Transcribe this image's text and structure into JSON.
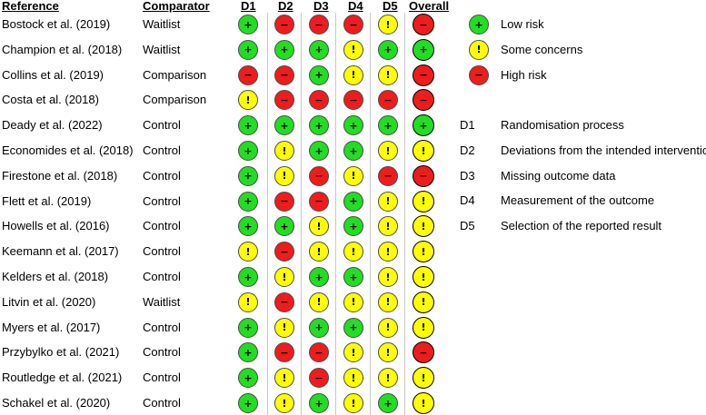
{
  "headers": {
    "reference": "Reference",
    "comparator": "Comparator",
    "domains": [
      "D1",
      "D2",
      "D3",
      "D4",
      "D5"
    ],
    "overall": "Overall"
  },
  "judgement_styles": {
    "low": {
      "color": "#22dd22",
      "symbol": "+"
    },
    "some": {
      "color": "#ffff00",
      "symbol": "!"
    },
    "high": {
      "color": "#ee1c1c",
      "symbol": "−"
    }
  },
  "studies": [
    {
      "reference": "Bostock et al. (2019)",
      "comparator": "Waitlist",
      "d": [
        "low",
        "high",
        "high",
        "high",
        "some"
      ],
      "overall": "high"
    },
    {
      "reference": "Champion et al. (2018)",
      "comparator": "Waitlist",
      "d": [
        "low",
        "low",
        "low",
        "some",
        "low"
      ],
      "overall": "low"
    },
    {
      "reference": "Collins et al. (2019)",
      "comparator": "Comparison",
      "d": [
        "high",
        "high",
        "low",
        "some",
        "some"
      ],
      "overall": "high"
    },
    {
      "reference": "Costa et al. (2018)",
      "comparator": "Comparison",
      "d": [
        "some",
        "high",
        "high",
        "high",
        "high"
      ],
      "overall": "high"
    },
    {
      "reference": "Deady et al. (2022)",
      "comparator": "Control",
      "d": [
        "low",
        "low",
        "low",
        "low",
        "low"
      ],
      "overall": "low"
    },
    {
      "reference": "Economides et al. (2018)",
      "comparator": "Control",
      "d": [
        "low",
        "some",
        "low",
        "low",
        "some"
      ],
      "overall": "some"
    },
    {
      "reference": "Firestone et al. (2018)",
      "comparator": "Control",
      "d": [
        "low",
        "some",
        "high",
        "some",
        "high"
      ],
      "overall": "high"
    },
    {
      "reference": "Flett et al. (2019)",
      "comparator": "Control",
      "d": [
        "low",
        "high",
        "high",
        "low",
        "some"
      ],
      "overall": "some"
    },
    {
      "reference": "Howells et al. (2016)",
      "comparator": "Control",
      "d": [
        "low",
        "low",
        "some",
        "low",
        "some"
      ],
      "overall": "some"
    },
    {
      "reference": "Keemann et al. (2017)",
      "comparator": "Control",
      "d": [
        "some",
        "high",
        "some",
        "some",
        "some"
      ],
      "overall": "some"
    },
    {
      "reference": "Kelders et al. (2018)",
      "comparator": "Control",
      "d": [
        "low",
        "some",
        "low",
        "low",
        "some"
      ],
      "overall": "some"
    },
    {
      "reference": "Litvin et al. (2020)",
      "comparator": "Waitlist",
      "d": [
        "some",
        "high",
        "some",
        "some",
        "some"
      ],
      "overall": "some"
    },
    {
      "reference": "Myers et al. (2017)",
      "comparator": "Control",
      "d": [
        "low",
        "some",
        "low",
        "low",
        "some"
      ],
      "overall": "some"
    },
    {
      "reference": "Przybylko et al. (2021)",
      "comparator": "Control",
      "d": [
        "low",
        "high",
        "high",
        "some",
        "some"
      ],
      "overall": "high"
    },
    {
      "reference": "Routledge et al. (2021)",
      "comparator": "Control",
      "d": [
        "low",
        "some",
        "high",
        "some",
        "some"
      ],
      "overall": "some"
    },
    {
      "reference": "Schakel et al. (2020)",
      "comparator": "Control",
      "d": [
        "low",
        "some",
        "low",
        "some",
        "low"
      ],
      "overall": "some"
    }
  ],
  "legend": {
    "judgements": [
      {
        "key": "low",
        "label": "Low risk"
      },
      {
        "key": "some",
        "label": "Some concerns"
      },
      {
        "key": "high",
        "label": "High risk"
      }
    ],
    "domains": [
      {
        "code": "D1",
        "label": "Randomisation process"
      },
      {
        "code": "D2",
        "label": "Deviations from the intended interventions"
      },
      {
        "code": "D3",
        "label": "Missing outcome data"
      },
      {
        "code": "D4",
        "label": "Measurement of the outcome"
      },
      {
        "code": "D5",
        "label": "Selection of the reported result"
      }
    ]
  }
}
